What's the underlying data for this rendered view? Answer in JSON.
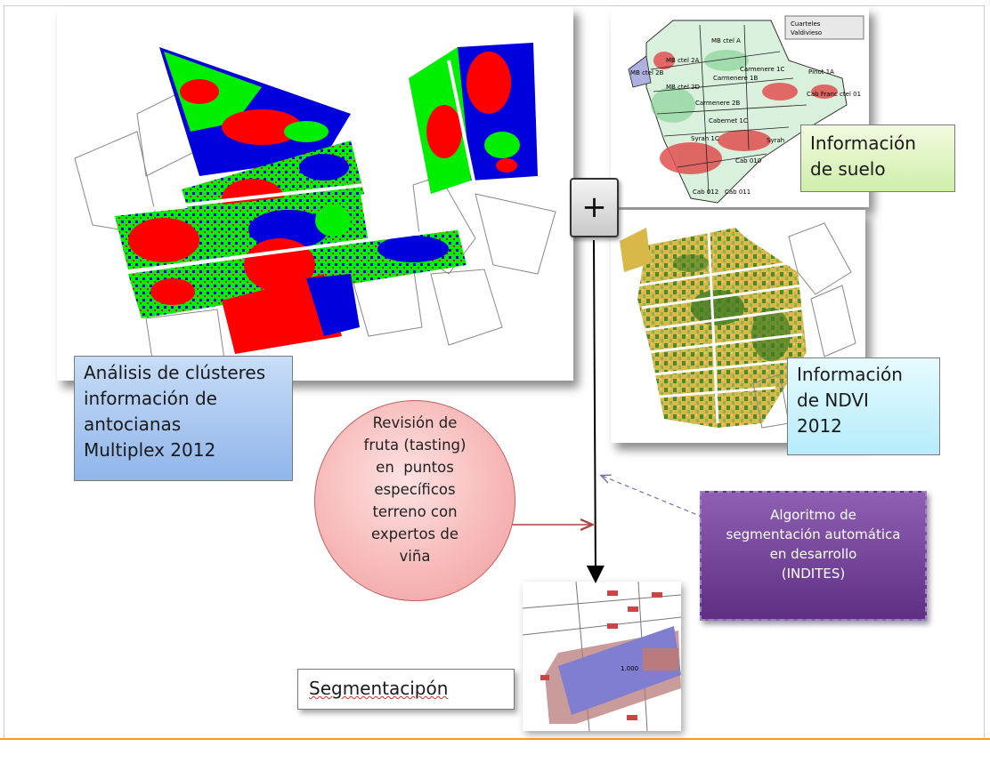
{
  "labels": {
    "clusters": [
      "Análisis de clústeres",
      "información de",
      "antocianas",
      "Multiplex 2012"
    ],
    "soil": [
      "Información",
      "de suelo"
    ],
    "ndvi": [
      "Información",
      "de NDVI",
      "2012"
    ],
    "tasting": [
      "Revisión de",
      "fruta (tasting)",
      "en  puntos",
      "específicos",
      "terreno con",
      "expertos de",
      "viña"
    ],
    "algorithm": [
      "Algoritmo de",
      "segmentación automática",
      "en desarrollo",
      "(INDITES)"
    ],
    "segmentation": "Segmentacipón",
    "plus": "+"
  },
  "soil_map": {
    "legend": [
      "Cuarteles",
      "Valdivieso"
    ],
    "block_labels": [
      "MB ctel A",
      "MB ctel 2A",
      "MB ctel 2B",
      "MB ctel 2D",
      "Carmenere 1B",
      "Carmenere 1C",
      "Carmenere 2B",
      "Pinot 1A",
      "Cab Franc ctel 01",
      "Cabernet 1C",
      "Syrah 1C",
      "Syrah",
      "Cab 010",
      "Cab 011",
      "Cab 012"
    ]
  },
  "segmentation_map": {
    "center_label": "1.000"
  },
  "colors": {
    "cluster_red": "#ff0000",
    "cluster_green": "#00ee00",
    "cluster_blue": "#0000dd",
    "soil_box": "#e6f7c8",
    "ndvi_box": "#c8f0ff",
    "cluster_box": "#a9c9f2",
    "circle": "#f8baba",
    "algo_box": "#7a4aa0",
    "accent_line": "#f0a020"
  }
}
